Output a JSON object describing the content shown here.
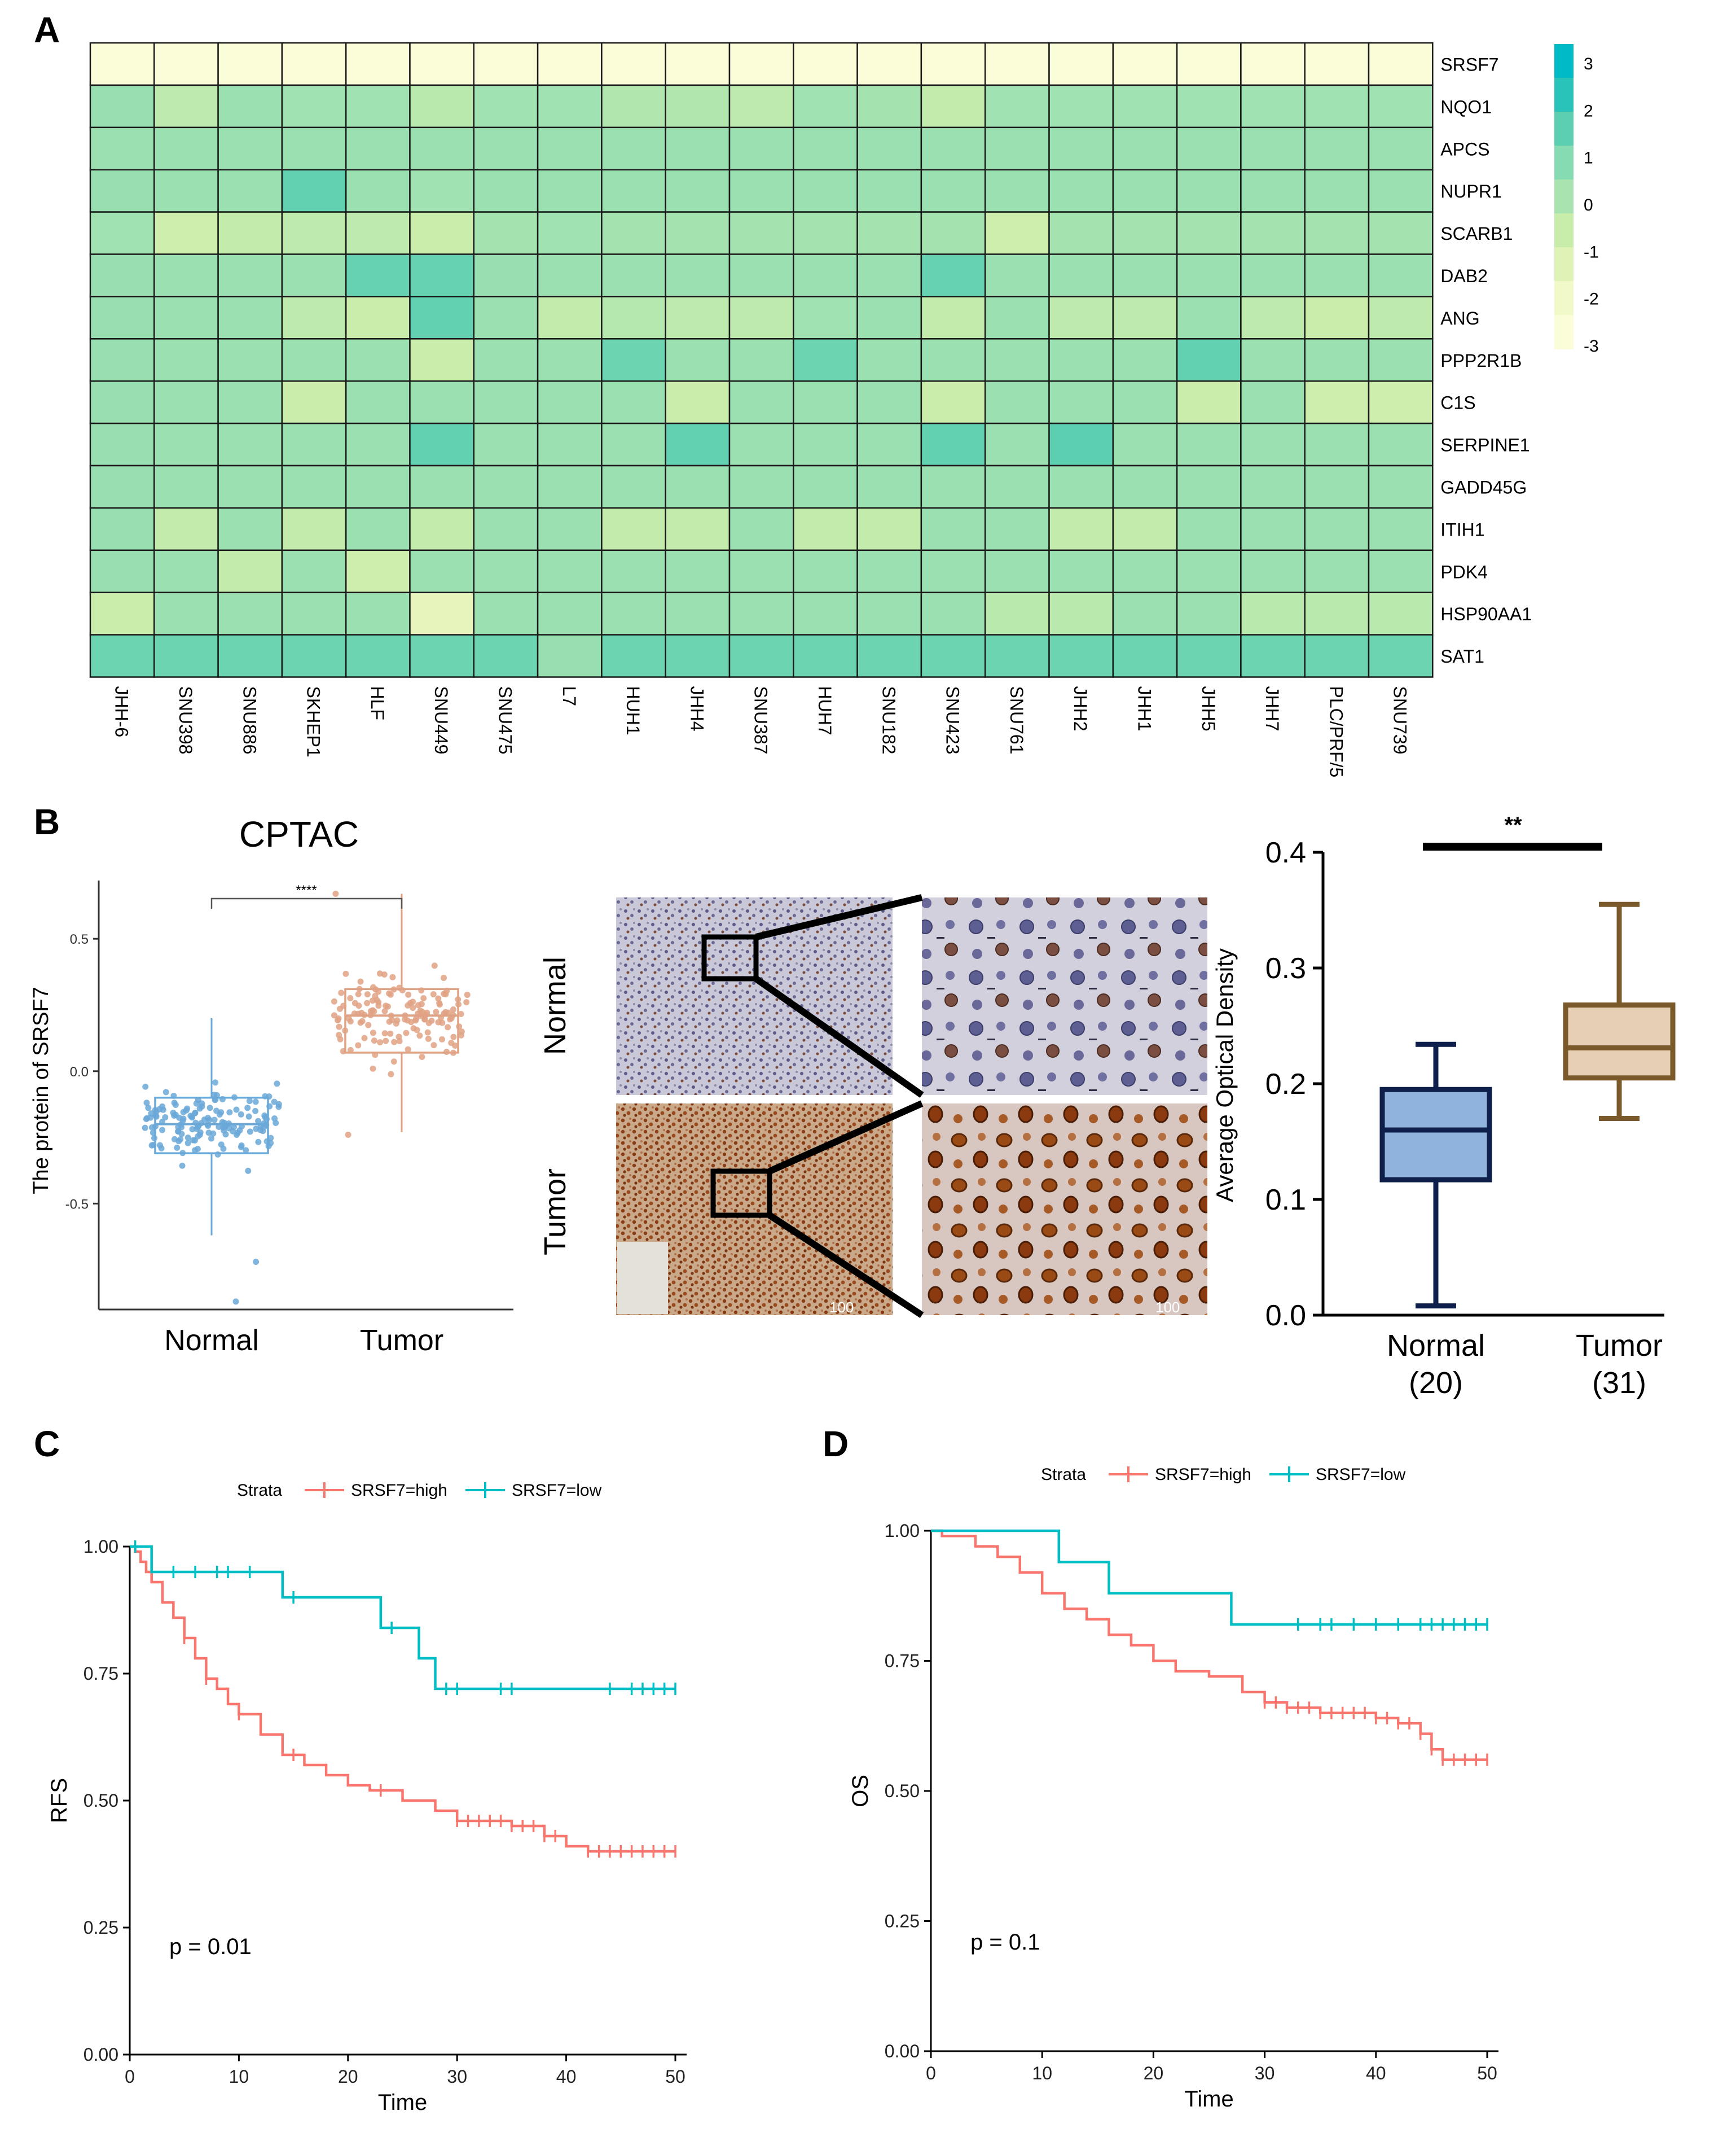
{
  "panels": {
    "A": "A",
    "B": "B",
    "C": "C",
    "D": "D"
  },
  "colors": {
    "km_high": "#f8766d",
    "km_low": "#00bfc4",
    "ihc_normal": "#8fb3dc",
    "ihc_tumor": "#e6cfb5",
    "ihc_normal_stroke": "#0d1f4a",
    "ihc_tumor_stroke": "#7a5a2b",
    "cptac_normal": "#6aa8d8",
    "cptac_tumor": "#e0a284"
  },
  "chart_data": [
    {
      "type": "heatmap",
      "id": "heatmap_A",
      "title": "",
      "rows": [
        "SRSF7",
        "NQO1",
        "APCS",
        "NUPR1",
        "SCARB1",
        "DAB2",
        "ANG",
        "PPP2R1B",
        "C1S",
        "SERPINE1",
        "GADD45G",
        "ITIH1",
        "PDK4",
        "HSP90AA1",
        "SAT1"
      ],
      "columns": [
        "JHH-6",
        "SNU398",
        "SNU886",
        "SKHEP1",
        "HLF",
        "SNU449",
        "SNU475",
        "L7",
        "HUH1",
        "JHH4",
        "SNU387",
        "HUH7",
        "SNU182",
        "SNU423",
        "SNU761",
        "JHH2",
        "JHH1",
        "JHH5",
        "JHH7",
        "PLC/PRF/5",
        "SNU739"
      ],
      "values": [
        [
          -3,
          -3,
          -3,
          -3,
          -3,
          -3,
          -3,
          -3,
          -3,
          -3,
          -3,
          -3,
          -3,
          -3,
          -3,
          -3,
          -3,
          -3,
          -3,
          -3,
          -3
        ],
        [
          0.4,
          -0.5,
          0.3,
          0.2,
          0.2,
          -0.4,
          0.2,
          0.2,
          -0.2,
          -0.2,
          -0.5,
          0.2,
          0.1,
          -0.6,
          0.2,
          0.2,
          0.2,
          0.2,
          0.2,
          0.2,
          0.2
        ],
        [
          0.3,
          0.3,
          0.3,
          0.3,
          0.3,
          0.3,
          0.3,
          0.3,
          0.3,
          0.3,
          0.3,
          0.3,
          0.3,
          0.3,
          0.3,
          0.3,
          0.3,
          0.3,
          0.3,
          0.3,
          0.3
        ],
        [
          0.4,
          0.3,
          0.3,
          1.4,
          0.3,
          0.2,
          0.3,
          0.3,
          0.3,
          0.3,
          0.3,
          0.3,
          0.3,
          0.3,
          0.3,
          0.3,
          0.3,
          0.3,
          0.3,
          0.3,
          0.3
        ],
        [
          0.2,
          -0.9,
          -0.6,
          -0.5,
          -0.5,
          -0.8,
          0.1,
          0.2,
          0.1,
          0.1,
          0.1,
          0.1,
          0.1,
          0.1,
          -0.9,
          0.1,
          0.1,
          0.1,
          0.1,
          0.1,
          0.1
        ],
        [
          0.4,
          0.3,
          0.3,
          0.3,
          1.3,
          1.3,
          0.4,
          0.3,
          0.3,
          0.3,
          0.3,
          0.3,
          0.3,
          1.3,
          0.3,
          0.3,
          0.3,
          0.3,
          0.3,
          0.3,
          0.3
        ],
        [
          0.4,
          0.3,
          0.3,
          -0.5,
          -0.8,
          1.4,
          0.3,
          -0.6,
          -0.3,
          -0.5,
          -0.5,
          0.2,
          0.3,
          -0.6,
          0.3,
          -0.5,
          -0.5,
          0.3,
          -0.5,
          -0.8,
          -0.5
        ],
        [
          0.4,
          0.3,
          0.3,
          0.3,
          0.3,
          -0.8,
          0.3,
          0.3,
          1.2,
          0.3,
          0.3,
          1.2,
          0.3,
          0.3,
          0.3,
          0.3,
          0.3,
          1.4,
          0.3,
          0.3,
          0.3
        ],
        [
          0.4,
          0.3,
          0.3,
          -0.8,
          0.3,
          0.3,
          0.3,
          0.3,
          0.3,
          -0.8,
          0.3,
          0.3,
          0.3,
          -0.8,
          0.3,
          0.3,
          0.3,
          -0.8,
          0.3,
          -0.9,
          -0.9
        ],
        [
          0.4,
          0.3,
          0.3,
          0.3,
          0.3,
          1.4,
          0.3,
          0.3,
          0.3,
          1.4,
          0.3,
          0.3,
          0.3,
          1.4,
          0.3,
          1.5,
          0.3,
          0.3,
          0.3,
          0.3,
          0.3
        ],
        [
          0.4,
          0.3,
          0.3,
          0.3,
          0.3,
          0.3,
          0.3,
          0.3,
          0.3,
          0.3,
          0.3,
          0.3,
          0.3,
          0.3,
          0.3,
          0.3,
          0.3,
          0.3,
          0.3,
          0.3,
          0.3
        ],
        [
          0.4,
          -0.6,
          0.3,
          -0.6,
          0.3,
          -0.6,
          0.3,
          0.3,
          -0.6,
          -0.6,
          0.3,
          -0.6,
          -0.6,
          0.3,
          0.3,
          -0.6,
          -0.6,
          0.3,
          0.3,
          0.3,
          0.3
        ],
        [
          0.4,
          0.3,
          -0.6,
          0.3,
          -0.9,
          0.3,
          0.3,
          0.3,
          0.3,
          0.3,
          0.3,
          0.3,
          0.3,
          0.3,
          0.3,
          0.3,
          0.3,
          0.3,
          0.3,
          0.3,
          0.3
        ],
        [
          -0.8,
          0.3,
          0.3,
          0.3,
          0.3,
          -1.8,
          0.3,
          0.3,
          0.3,
          0.3,
          0.3,
          0.3,
          0.3,
          0.3,
          -0.4,
          -0.4,
          0.3,
          0.3,
          -0.4,
          -0.4,
          -0.4
        ],
        [
          1.2,
          1.2,
          1.2,
          1.2,
          1.2,
          1.2,
          1.2,
          0.4,
          1.2,
          1.2,
          1.2,
          1.2,
          1.2,
          1.2,
          1.2,
          1.2,
          1.2,
          1.2,
          1.2,
          1.2,
          1.2
        ]
      ],
      "scale": {
        "min": -3,
        "max": 3,
        "ticks": [
          "3",
          "2",
          "1",
          "0",
          "-1",
          "-2",
          "-3"
        ],
        "colors": [
          "#00bbc7",
          "#29c3b9",
          "#5ccfb1",
          "#87dbb2",
          "#a9e4b0",
          "#c8edab",
          "#e0f3b6",
          "#f2f9c8",
          "#fbfdd8"
        ]
      }
    },
    {
      "type": "box",
      "id": "cptac_B",
      "title": "CPTAC",
      "ylabel": "The protein of SRSF7",
      "categories": [
        "Normal",
        "Tumor"
      ],
      "ylim": [
        -0.9,
        0.72
      ],
      "yticks": [
        "0.5",
        "0.0",
        "-0.5"
      ],
      "significance": "****",
      "series": [
        {
          "name": "Normal",
          "min": -0.62,
          "q1": -0.31,
          "median": -0.2,
          "q3": -0.1,
          "max": 0.2,
          "n_points": 155
        },
        {
          "name": "Tumor",
          "min": -0.23,
          "q1": 0.07,
          "median": 0.21,
          "q3": 0.31,
          "max": 0.67,
          "n_points": 145
        }
      ]
    },
    {
      "type": "image",
      "id": "ihc_B",
      "row_labels": [
        "Normal",
        "Tumor"
      ],
      "scale_label": "100"
    },
    {
      "type": "box",
      "id": "aod_B",
      "title": "",
      "ylabel": "Average Optical Density",
      "categories": [
        "Normal",
        "Tumor"
      ],
      "category_n": [
        "(20)",
        "(31)"
      ],
      "ylim": [
        0,
        0.4
      ],
      "yticks": [
        "0.0",
        "0.1",
        "0.2",
        "0.3",
        "0.4"
      ],
      "significance": "**",
      "series": [
        {
          "name": "Normal",
          "min": 0.008,
          "q1": 0.117,
          "median": 0.16,
          "q3": 0.195,
          "max": 0.234
        },
        {
          "name": "Tumor",
          "min": 0.17,
          "q1": 0.205,
          "median": 0.231,
          "q3": 0.268,
          "max": 0.355
        }
      ]
    },
    {
      "type": "line",
      "id": "km_C",
      "ylabel": "RFS",
      "xlabel": "Time",
      "legend_title": "Strata",
      "xlim": [
        0,
        50
      ],
      "ylim": [
        0,
        1
      ],
      "xticks": [
        "0",
        "10",
        "20",
        "30",
        "40",
        "50"
      ],
      "yticks": [
        "1.00",
        "0.75",
        "0.50",
        "0.25",
        "0.00"
      ],
      "pvalue": "p = 0.01",
      "series": [
        {
          "name": "SRSF7=high",
          "x": [
            0,
            0.5,
            1,
            1.5,
            2,
            3,
            4,
            5,
            6,
            7,
            8,
            9,
            10,
            12,
            14,
            16,
            18,
            20,
            22,
            25,
            28,
            30,
            32,
            35,
            38,
            40,
            42,
            50
          ],
          "y": [
            1.0,
            0.99,
            0.97,
            0.95,
            0.93,
            0.89,
            0.86,
            0.82,
            0.78,
            0.74,
            0.72,
            0.69,
            0.67,
            0.63,
            0.59,
            0.57,
            0.55,
            0.53,
            0.52,
            0.5,
            0.48,
            0.46,
            0.46,
            0.45,
            0.43,
            0.41,
            0.4,
            0.4
          ],
          "censor_x": [
            5,
            7,
            10,
            15,
            23,
            30,
            31,
            32,
            33,
            34,
            35,
            36,
            37,
            38,
            39,
            42,
            43,
            44,
            45,
            46,
            47,
            48,
            49,
            50
          ]
        },
        {
          "name": "SRSF7=low",
          "x": [
            0,
            2,
            14,
            23,
            26.5,
            28,
            50
          ],
          "y": [
            1.0,
            0.95,
            0.9,
            0.84,
            0.78,
            0.72,
            0.72
          ],
          "censor_x": [
            0.5,
            4,
            6,
            8,
            9,
            11,
            15,
            24,
            29,
            30,
            34,
            35,
            44,
            46,
            47,
            48,
            49,
            50
          ]
        }
      ]
    },
    {
      "type": "line",
      "id": "km_D",
      "ylabel": "OS",
      "xlabel": "Time",
      "legend_title": "Strata",
      "xlim": [
        0,
        50
      ],
      "ylim": [
        0,
        1
      ],
      "xticks": [
        "0",
        "10",
        "20",
        "30",
        "40",
        "50"
      ],
      "yticks": [
        "1.00",
        "0.75",
        "0.50",
        "0.25",
        "0.00"
      ],
      "pvalue": "p = 0.1",
      "series": [
        {
          "name": "SRSF7=high",
          "x": [
            0,
            1,
            2,
            4,
            6,
            8,
            10,
            12,
            14,
            16,
            18,
            20,
            22,
            25,
            28,
            30,
            32,
            35,
            38,
            40,
            42,
            44,
            45,
            46,
            50
          ],
          "y": [
            1.0,
            0.99,
            0.99,
            0.97,
            0.95,
            0.92,
            0.88,
            0.85,
            0.83,
            0.8,
            0.78,
            0.75,
            0.73,
            0.72,
            0.69,
            0.67,
            0.66,
            0.65,
            0.65,
            0.64,
            0.63,
            0.61,
            0.58,
            0.56,
            0.56
          ],
          "censor_x": [
            30,
            31,
            32,
            33,
            34,
            35,
            36,
            37,
            38,
            39,
            40,
            41,
            42,
            43,
            44,
            45,
            46,
            47,
            48,
            49,
            50
          ]
        },
        {
          "name": "SRSF7=low",
          "x": [
            0,
            11.5,
            16,
            27,
            50
          ],
          "y": [
            1.0,
            0.94,
            0.88,
            0.82,
            0.82
          ],
          "censor_x": [
            33,
            35,
            36,
            38,
            40,
            42,
            44,
            45,
            46,
            47,
            48,
            49,
            50
          ]
        }
      ]
    }
  ]
}
